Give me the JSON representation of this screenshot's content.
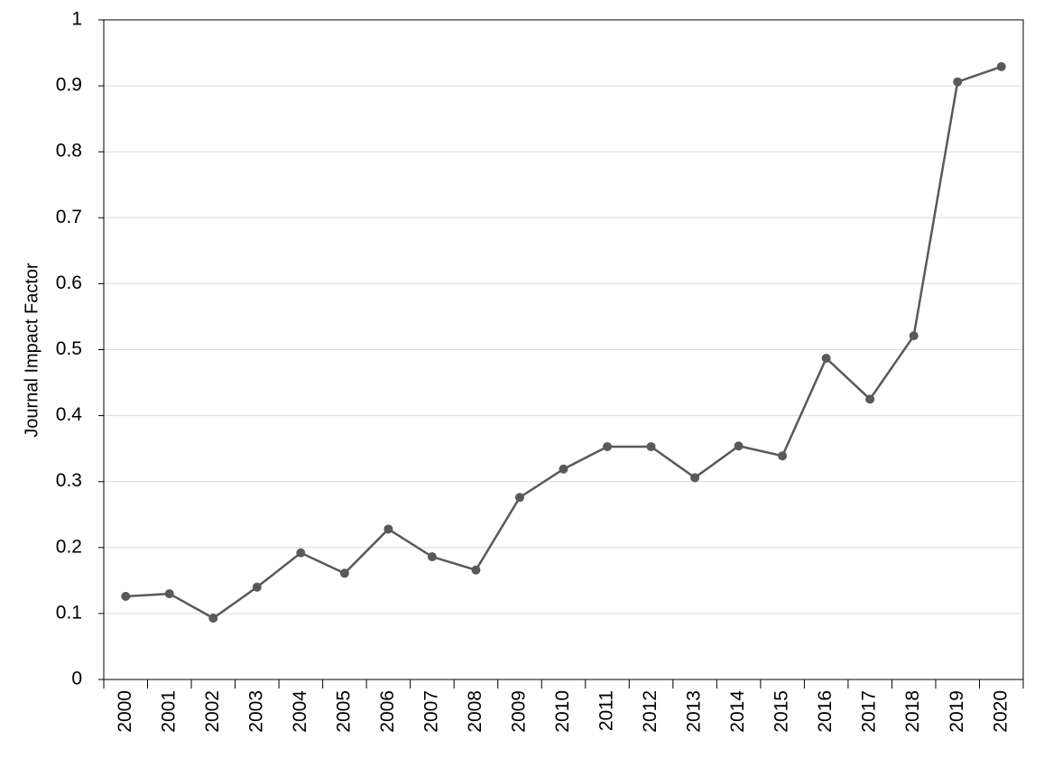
{
  "chart_data": {
    "type": "line",
    "y_label": "Journal Impact Factor",
    "categories": [
      "2000",
      "2001",
      "2002",
      "2003",
      "2004",
      "2005",
      "2006",
      "2007",
      "2008",
      "2009",
      "2010",
      "2011",
      "2012",
      "2013",
      "2014",
      "2015",
      "2016",
      "2017",
      "2018",
      "2019",
      "2020"
    ],
    "series": [
      {
        "color": "#595959",
        "values": [
          0.126,
          0.13,
          0.093,
          0.14,
          0.192,
          0.161,
          0.228,
          0.186,
          0.166,
          0.276,
          0.319,
          0.353,
          0.353,
          0.306,
          0.354,
          0.339,
          0.487,
          0.425,
          0.521,
          0.906,
          0.929
        ]
      }
    ],
    "ylim": [
      0,
      1
    ],
    "yticks": [
      0,
      0.1,
      0.2,
      0.3,
      0.4,
      0.5,
      0.6,
      0.7,
      0.8,
      0.9,
      1
    ],
    "grid": true
  }
}
